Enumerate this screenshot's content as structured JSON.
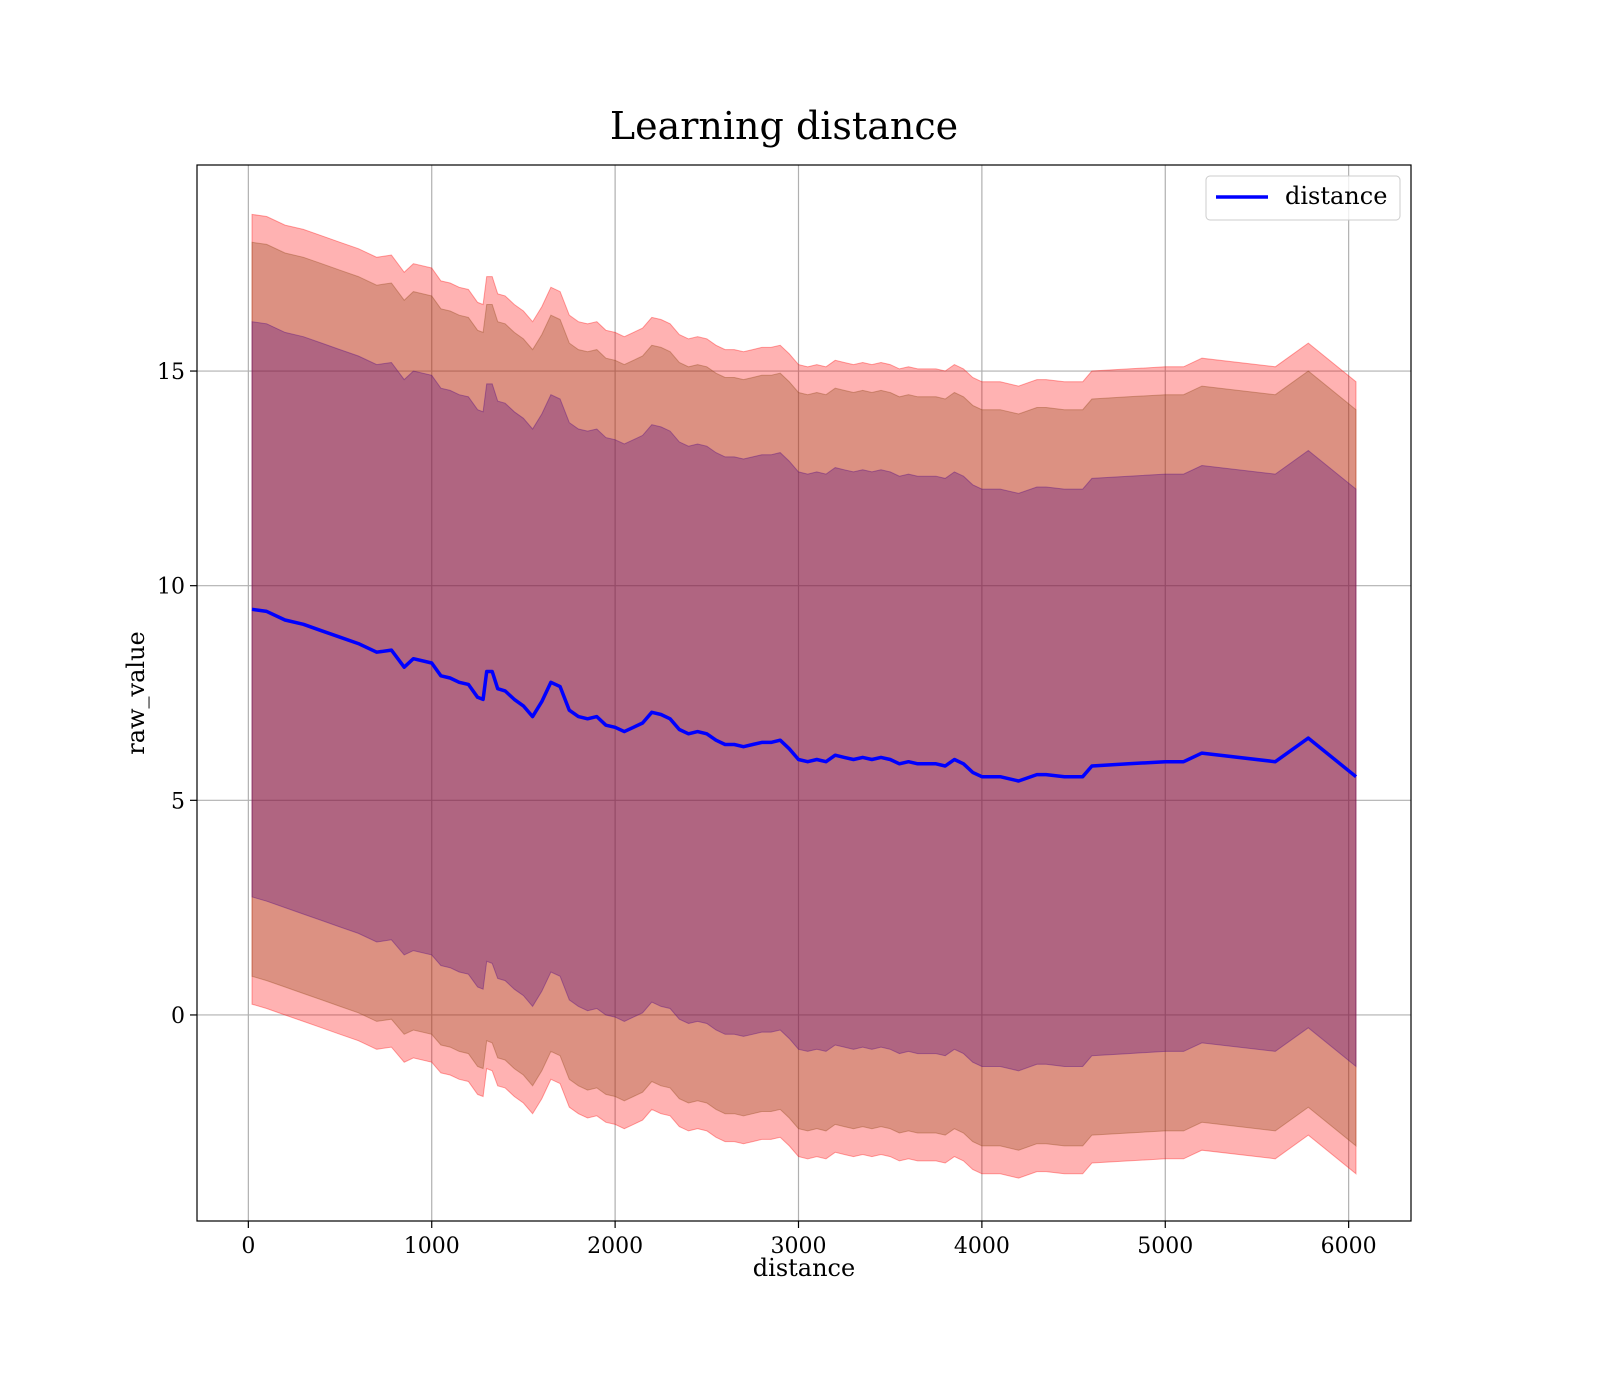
{
  "chart_data": {
    "type": "area",
    "title": "Learning distance",
    "xlabel": "distance",
    "ylabel": "raw_value",
    "xlim": [
      -280,
      6340
    ],
    "ylim": [
      -4.8,
      19.8
    ],
    "x_ticks": [
      0,
      1000,
      2000,
      3000,
      4000,
      5000,
      6000
    ],
    "x_tick_labels": [
      "0",
      "1000",
      "2000",
      "3000",
      "4000",
      "5000",
      "6000"
    ],
    "y_ticks": [
      0,
      5,
      10,
      15
    ],
    "y_tick_labels": [
      "0",
      "5",
      "10",
      "15"
    ],
    "grid": true,
    "legend": {
      "position": "upper right",
      "entries": [
        "distance"
      ]
    },
    "colors": {
      "line": "#0000ff",
      "outer_band": "#ff0000",
      "middle_band": "#8b4513",
      "inner_band": "#4b0082"
    },
    "x": [
      20,
      100,
      200,
      300,
      400,
      500,
      600,
      700,
      780,
      850,
      900,
      1000,
      1050,
      1100,
      1150,
      1200,
      1250,
      1280,
      1300,
      1330,
      1360,
      1400,
      1450,
      1500,
      1550,
      1600,
      1650,
      1700,
      1750,
      1800,
      1850,
      1900,
      1950,
      2000,
      2050,
      2100,
      2150,
      2200,
      2250,
      2300,
      2350,
      2400,
      2450,
      2500,
      2550,
      2600,
      2650,
      2700,
      2750,
      2800,
      2850,
      2900,
      2950,
      3000,
      3050,
      3100,
      3150,
      3200,
      3250,
      3300,
      3350,
      3400,
      3450,
      3500,
      3550,
      3600,
      3650,
      3700,
      3750,
      3800,
      3850,
      3900,
      3950,
      4000,
      4050,
      4100,
      4200,
      4300,
      4350,
      4450,
      4550,
      4600,
      4800,
      5000,
      5100,
      5200,
      5600,
      5780,
      6040
    ],
    "series": [
      {
        "name": "distance",
        "values": [
          9.45,
          9.4,
          9.2,
          9.1,
          8.95,
          8.8,
          8.65,
          8.45,
          8.5,
          8.1,
          8.3,
          8.2,
          7.9,
          7.85,
          7.75,
          7.7,
          7.4,
          7.35,
          8.0,
          8.0,
          7.6,
          7.55,
          7.35,
          7.2,
          6.95,
          7.3,
          7.75,
          7.65,
          7.1,
          6.95,
          6.9,
          6.95,
          6.75,
          6.7,
          6.6,
          6.7,
          6.8,
          7.05,
          7.0,
          6.9,
          6.65,
          6.55,
          6.6,
          6.55,
          6.4,
          6.3,
          6.3,
          6.25,
          6.3,
          6.35,
          6.35,
          6.4,
          6.2,
          5.95,
          5.9,
          5.95,
          5.9,
          6.05,
          6.0,
          5.95,
          6.0,
          5.95,
          6.0,
          5.95,
          5.85,
          5.9,
          5.85,
          5.85,
          5.85,
          5.8,
          5.95,
          5.85,
          5.65,
          5.55,
          5.55,
          5.55,
          5.45,
          5.6,
          5.6,
          5.55,
          5.55,
          5.8,
          5.85,
          5.9,
          5.9,
          6.1,
          5.9,
          6.45,
          5.55
        ]
      }
    ],
    "bands": [
      {
        "lower": [
          0.25,
          0.15,
          0.0,
          -0.15,
          -0.3,
          -0.45,
          -0.6,
          -0.8,
          -0.75,
          -1.1,
          -1.0,
          -1.1,
          -1.35,
          -1.4,
          -1.5,
          -1.55,
          -1.85,
          -1.9,
          -1.25,
          -1.3,
          -1.65,
          -1.7,
          -1.9,
          -2.05,
          -2.3,
          -1.95,
          -1.5,
          -1.6,
          -2.15,
          -2.3,
          -2.4,
          -2.35,
          -2.5,
          -2.55,
          -2.65,
          -2.55,
          -2.45,
          -2.2,
          -2.3,
          -2.35,
          -2.6,
          -2.7,
          -2.65,
          -2.7,
          -2.85,
          -2.95,
          -2.95,
          -3.0,
          -2.95,
          -2.9,
          -2.9,
          -2.85,
          -3.05,
          -3.3,
          -3.35,
          -3.3,
          -3.35,
          -3.2,
          -3.25,
          -3.3,
          -3.25,
          -3.3,
          -3.25,
          -3.3,
          -3.4,
          -3.35,
          -3.4,
          -3.4,
          -3.4,
          -3.45,
          -3.3,
          -3.4,
          -3.6,
          -3.7,
          -3.7,
          -3.7,
          -3.8,
          -3.65,
          -3.65,
          -3.7,
          -3.7,
          -3.45,
          -3.4,
          -3.35,
          -3.35,
          -3.15,
          -3.35,
          -2.8,
          -3.7
        ],
        "upper": [
          18.65,
          18.6,
          18.4,
          18.3,
          18.15,
          18.0,
          17.85,
          17.65,
          17.7,
          17.3,
          17.5,
          17.4,
          17.1,
          17.05,
          16.95,
          16.9,
          16.6,
          16.55,
          17.2,
          17.2,
          16.8,
          16.75,
          16.55,
          16.4,
          16.15,
          16.5,
          16.95,
          16.85,
          16.3,
          16.15,
          16.1,
          16.15,
          15.95,
          15.9,
          15.8,
          15.9,
          16.0,
          16.25,
          16.2,
          16.1,
          15.85,
          15.75,
          15.8,
          15.75,
          15.6,
          15.5,
          15.5,
          15.45,
          15.5,
          15.55,
          15.55,
          15.6,
          15.4,
          15.15,
          15.1,
          15.15,
          15.1,
          15.25,
          15.2,
          15.15,
          15.2,
          15.15,
          15.2,
          15.15,
          15.05,
          15.1,
          15.05,
          15.05,
          15.05,
          15.0,
          15.15,
          15.05,
          14.85,
          14.75,
          14.75,
          14.75,
          14.65,
          14.8,
          14.8,
          14.75,
          14.75,
          15.0,
          15.05,
          15.1,
          15.1,
          15.3,
          15.1,
          15.65,
          14.75
        ]
      },
      {
        "lower": [
          0.9,
          0.8,
          0.65,
          0.5,
          0.35,
          0.2,
          0.05,
          -0.15,
          -0.1,
          -0.45,
          -0.35,
          -0.45,
          -0.7,
          -0.75,
          -0.85,
          -0.9,
          -1.2,
          -1.25,
          -0.6,
          -0.65,
          -1.0,
          -1.05,
          -1.25,
          -1.4,
          -1.65,
          -1.3,
          -0.85,
          -0.95,
          -1.5,
          -1.65,
          -1.75,
          -1.7,
          -1.85,
          -1.9,
          -2.0,
          -1.9,
          -1.8,
          -1.55,
          -1.65,
          -1.7,
          -1.95,
          -2.05,
          -2.0,
          -2.05,
          -2.2,
          -2.3,
          -2.3,
          -2.35,
          -2.3,
          -2.25,
          -2.25,
          -2.2,
          -2.4,
          -2.65,
          -2.7,
          -2.65,
          -2.7,
          -2.55,
          -2.6,
          -2.65,
          -2.6,
          -2.65,
          -2.6,
          -2.65,
          -2.75,
          -2.7,
          -2.75,
          -2.75,
          -2.75,
          -2.8,
          -2.65,
          -2.75,
          -2.95,
          -3.05,
          -3.05,
          -3.05,
          -3.15,
          -3.0,
          -3.0,
          -3.05,
          -3.05,
          -2.8,
          -2.75,
          -2.7,
          -2.7,
          -2.5,
          -2.7,
          -2.15,
          -3.05
        ],
        "upper": [
          18.0,
          17.95,
          17.75,
          17.65,
          17.5,
          17.35,
          17.2,
          17.0,
          17.05,
          16.65,
          16.85,
          16.75,
          16.45,
          16.4,
          16.3,
          16.25,
          15.95,
          15.9,
          16.55,
          16.55,
          16.15,
          16.1,
          15.9,
          15.75,
          15.5,
          15.85,
          16.3,
          16.2,
          15.65,
          15.5,
          15.45,
          15.5,
          15.3,
          15.25,
          15.15,
          15.25,
          15.35,
          15.6,
          15.55,
          15.45,
          15.2,
          15.1,
          15.15,
          15.1,
          14.95,
          14.85,
          14.85,
          14.8,
          14.85,
          14.9,
          14.9,
          14.95,
          14.75,
          14.5,
          14.45,
          14.5,
          14.45,
          14.6,
          14.55,
          14.5,
          14.55,
          14.5,
          14.55,
          14.5,
          14.4,
          14.45,
          14.4,
          14.4,
          14.4,
          14.35,
          14.5,
          14.4,
          14.2,
          14.1,
          14.1,
          14.1,
          14.0,
          14.15,
          14.15,
          14.1,
          14.1,
          14.35,
          14.4,
          14.45,
          14.45,
          14.65,
          14.45,
          15.0,
          14.1
        ]
      },
      {
        "lower": [
          2.75,
          2.65,
          2.5,
          2.35,
          2.2,
          2.05,
          1.9,
          1.7,
          1.75,
          1.4,
          1.5,
          1.4,
          1.15,
          1.1,
          1.0,
          0.95,
          0.65,
          0.6,
          1.25,
          1.2,
          0.85,
          0.8,
          0.6,
          0.45,
          0.2,
          0.55,
          1.0,
          0.9,
          0.35,
          0.2,
          0.1,
          0.15,
          0.0,
          -0.05,
          -0.15,
          -0.05,
          0.05,
          0.3,
          0.2,
          0.15,
          -0.1,
          -0.2,
          -0.15,
          -0.2,
          -0.35,
          -0.45,
          -0.45,
          -0.5,
          -0.45,
          -0.4,
          -0.4,
          -0.35,
          -0.55,
          -0.8,
          -0.85,
          -0.8,
          -0.85,
          -0.7,
          -0.75,
          -0.8,
          -0.75,
          -0.8,
          -0.75,
          -0.8,
          -0.9,
          -0.85,
          -0.9,
          -0.9,
          -0.9,
          -0.95,
          -0.8,
          -0.9,
          -1.1,
          -1.2,
          -1.2,
          -1.2,
          -1.3,
          -1.15,
          -1.15,
          -1.2,
          -1.2,
          -0.95,
          -0.9,
          -0.85,
          -0.85,
          -0.65,
          -0.85,
          -0.3,
          -1.2
        ],
        "upper": [
          16.15,
          16.1,
          15.9,
          15.8,
          15.65,
          15.5,
          15.35,
          15.15,
          15.2,
          14.8,
          15.0,
          14.9,
          14.6,
          14.55,
          14.45,
          14.4,
          14.1,
          14.05,
          14.7,
          14.7,
          14.3,
          14.25,
          14.05,
          13.9,
          13.65,
          14.0,
          14.45,
          14.35,
          13.8,
          13.65,
          13.6,
          13.65,
          13.45,
          13.4,
          13.3,
          13.4,
          13.5,
          13.75,
          13.7,
          13.6,
          13.35,
          13.25,
          13.3,
          13.25,
          13.1,
          13.0,
          13.0,
          12.95,
          13.0,
          13.05,
          13.05,
          13.1,
          12.9,
          12.65,
          12.6,
          12.65,
          12.6,
          12.75,
          12.7,
          12.65,
          12.7,
          12.65,
          12.7,
          12.65,
          12.55,
          12.6,
          12.55,
          12.55,
          12.55,
          12.5,
          12.65,
          12.55,
          12.35,
          12.25,
          12.25,
          12.25,
          12.15,
          12.3,
          12.3,
          12.25,
          12.25,
          12.5,
          12.55,
          12.6,
          12.6,
          12.8,
          12.6,
          13.15,
          12.25
        ]
      }
    ]
  }
}
